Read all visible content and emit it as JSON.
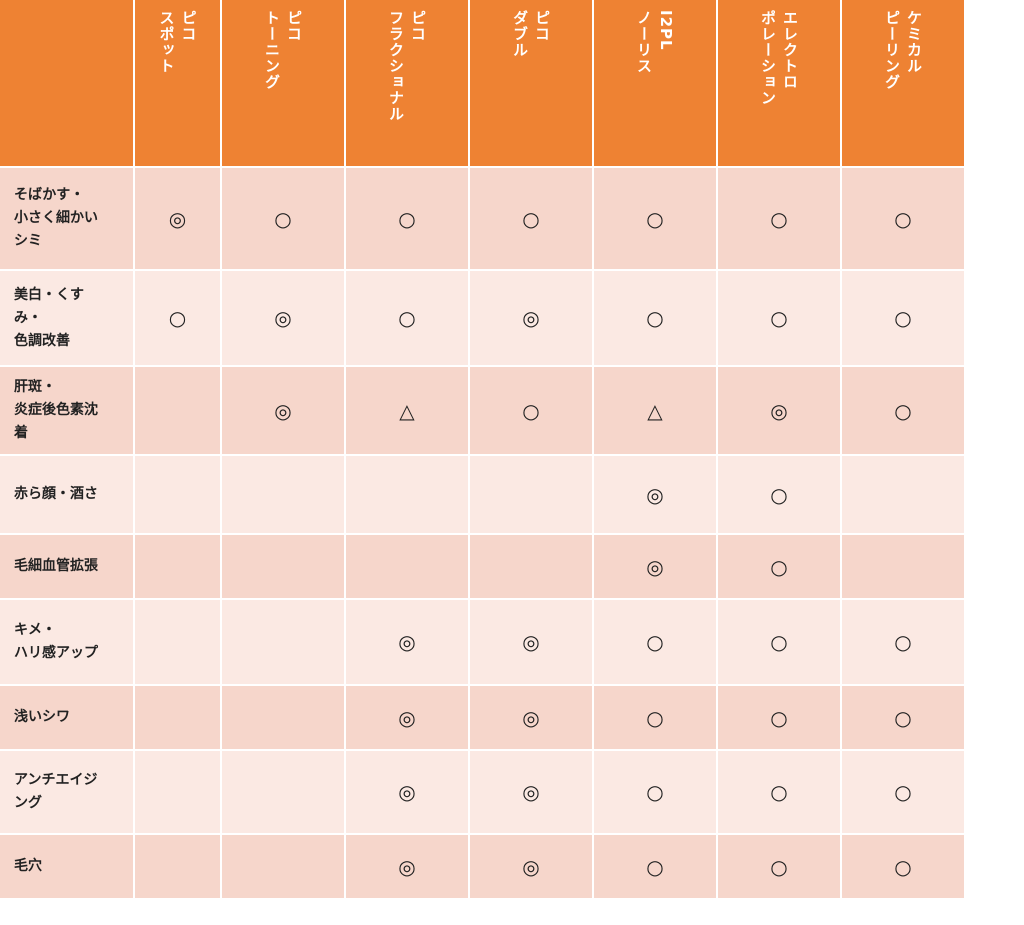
{
  "header": {
    "corner": "",
    "columns": [
      "ピコ\nスポット",
      "ピコ\nトーニング",
      "ピコ\nフラクショナル",
      "ピコ\nダブル",
      "I2PL\nノーリス",
      "エレクトロ\nポレーション",
      "ケミカル\nピーリング"
    ]
  },
  "rows": [
    {
      "label": "そばかす・\n小さく細かい\nシミ",
      "marks": [
        "◎",
        "○",
        "○",
        "○",
        "○",
        "○",
        "○"
      ]
    },
    {
      "label": "美白・くす\nみ・\n色調改善",
      "marks": [
        "○",
        "◎",
        "○",
        "◎",
        "○",
        "○",
        "○"
      ]
    },
    {
      "label": "肝斑・\n炎症後色素沈\n着",
      "marks": [
        "",
        "◎",
        "△",
        "○",
        "△",
        "◎",
        "○"
      ]
    },
    {
      "label": "赤ら顔・酒さ",
      "marks": [
        "",
        "",
        "",
        "",
        "◎",
        "○",
        ""
      ]
    },
    {
      "label": "毛細血管拡張",
      "marks": [
        "",
        "",
        "",
        "",
        "◎",
        "○",
        ""
      ]
    },
    {
      "label": "キメ・\nハリ感アップ",
      "marks": [
        "",
        "",
        "◎",
        "◎",
        "○",
        "○",
        "○"
      ]
    },
    {
      "label": "浅いシワ",
      "marks": [
        "",
        "",
        "◎",
        "◎",
        "○",
        "○",
        "○"
      ]
    },
    {
      "label": "アンチエイジ\nング",
      "marks": [
        "",
        "",
        "◎",
        "◎",
        "○",
        "○",
        "○"
      ]
    },
    {
      "label": "毛穴",
      "marks": [
        "",
        "",
        "◎",
        "◎",
        "○",
        "○",
        "○"
      ]
    }
  ],
  "colors": {
    "header_bg": "#ee8233",
    "row_dark": "#f6d6cb",
    "row_light": "#fbe9e3"
  }
}
